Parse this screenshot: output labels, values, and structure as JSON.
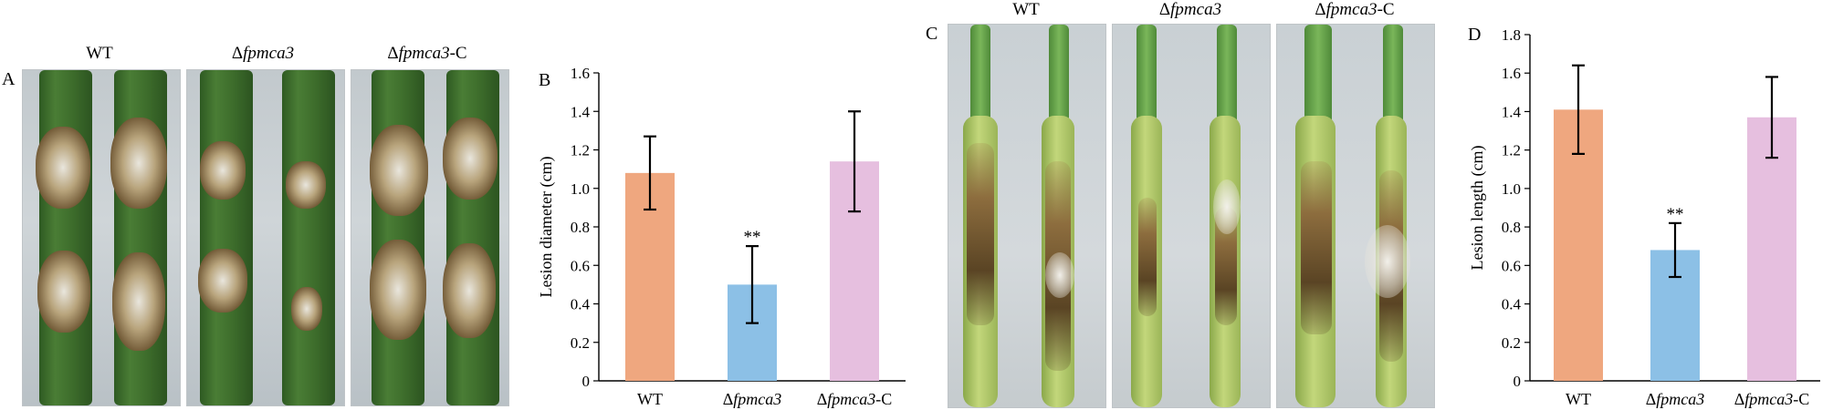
{
  "panels": {
    "a": {
      "letter": "A",
      "labels": [
        {
          "prefix": "",
          "italic": "",
          "text": "WT"
        },
        {
          "prefix": "Δ",
          "italic": "fpmca3",
          "text": ""
        },
        {
          "prefix": "Δ",
          "italic": "fpmca3",
          "text": "-C"
        }
      ]
    },
    "c": {
      "letter": "C",
      "labels": [
        {
          "prefix": "",
          "italic": "",
          "text": "WT"
        },
        {
          "prefix": "Δ",
          "italic": "fpmca3",
          "text": ""
        },
        {
          "prefix": "Δ",
          "italic": "fpmca3",
          "text": "-C"
        }
      ]
    }
  },
  "chart_data": [
    {
      "panel_letter": "B",
      "type": "bar",
      "categories": [
        "WT",
        "Δfpmca3",
        "Δfpmca3-C"
      ],
      "category_parts": [
        {
          "prefix": "",
          "italic": "",
          "suffix": "WT"
        },
        {
          "prefix": "Δ",
          "italic": "fpmca3",
          "suffix": ""
        },
        {
          "prefix": "Δ",
          "italic": "fpmca3",
          "suffix": "-C"
        }
      ],
      "values": [
        1.08,
        0.5,
        1.14
      ],
      "errors": [
        0.19,
        0.2,
        0.26
      ],
      "annotations": [
        "",
        "**",
        ""
      ],
      "colors": [
        "#efa77f",
        "#8cc0e6",
        "#e6bfdf"
      ],
      "ylabel": "Lesion diameter (cm)",
      "ylim": [
        0,
        1.6
      ],
      "yticks": [
        "0",
        "0.2",
        "0.4",
        "0.6",
        "0.8",
        "1.0",
        "1.2",
        "1.4",
        "1.6"
      ],
      "grid": false
    },
    {
      "panel_letter": "D",
      "type": "bar",
      "categories": [
        "WT",
        "Δfpmca3",
        "Δfpmca3-C"
      ],
      "category_parts": [
        {
          "prefix": "",
          "italic": "",
          "suffix": "WT"
        },
        {
          "prefix": "Δ",
          "italic": "fpmca3",
          "suffix": ""
        },
        {
          "prefix": "Δ",
          "italic": "fpmca3",
          "suffix": "-C"
        }
      ],
      "values": [
        1.41,
        0.68,
        1.37
      ],
      "errors": [
        0.23,
        0.14,
        0.21
      ],
      "annotations": [
        "",
        "**",
        ""
      ],
      "colors": [
        "#efa77f",
        "#8cc0e6",
        "#e6bfdf"
      ],
      "ylabel": "Lesion length (cm)",
      "ylim": [
        0,
        1.8
      ],
      "yticks": [
        "0",
        "0.2",
        "0.4",
        "0.6",
        "0.8",
        "1.0",
        "1.2",
        "1.4",
        "1.6",
        "1.8"
      ],
      "grid": false
    }
  ]
}
